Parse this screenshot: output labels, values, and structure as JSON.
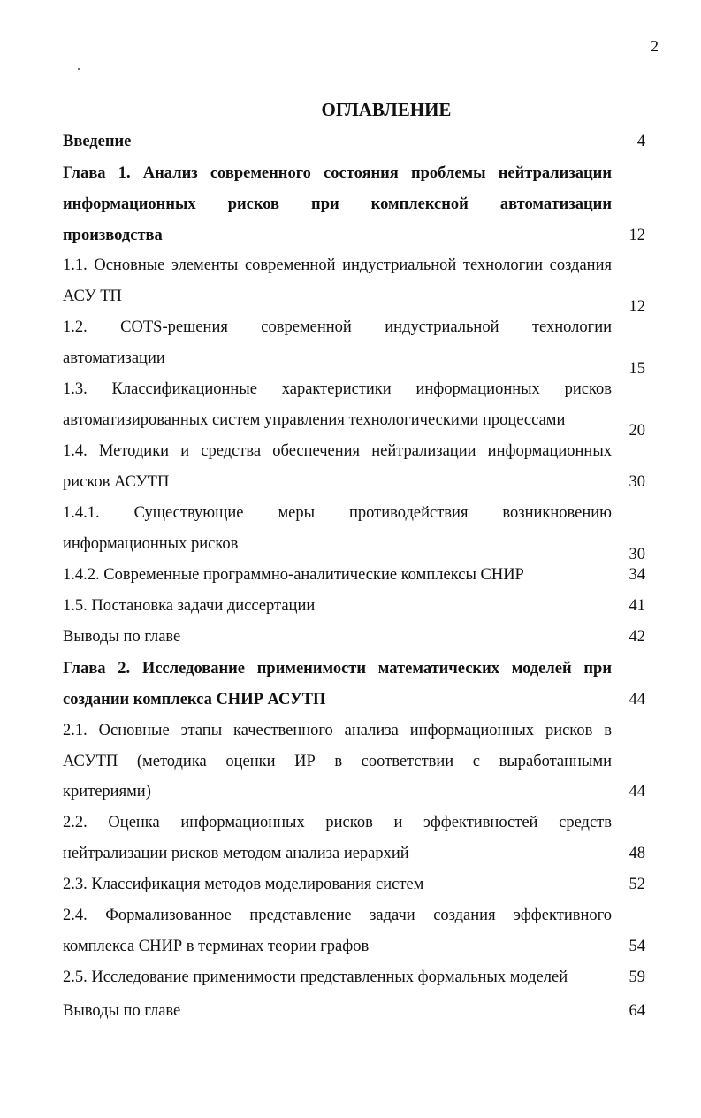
{
  "page_number": "2",
  "title": "ОГЛАВЛЕНИЕ",
  "entries": [
    {
      "bold": true,
      "lines": [
        "Введение"
      ],
      "page": "4"
    },
    {
      "bold": true,
      "lines": [
        "Глава 1. Анализ современного состояния проблемы нейтрализации",
        "информационных рисков при комплексной автоматизации",
        "производства"
      ],
      "page": "12"
    },
    {
      "bold": false,
      "lines": [
        "1.1. Основные элементы современной индустриальной технологии создания",
        "АСУ ТП"
      ],
      "page": "12"
    },
    {
      "bold": false,
      "lines": [
        "1.2. COTS-решения современной индустриальной технологии",
        "автоматизации"
      ],
      "page": "15"
    },
    {
      "bold": false,
      "lines": [
        "1.3. Классификационные характеристики информационных рисков",
        "автоматизированных систем управления технологическими процессами"
      ],
      "page": "20"
    },
    {
      "bold": false,
      "lines": [
        "1.4. Методики и средства обеспечения нейтрализации информационных",
        "рисков АСУТП"
      ],
      "page": "30"
    },
    {
      "bold": false,
      "lines": [
        "1.4.1. Существующие меры противодействия возникновению",
        "информационных рисков"
      ],
      "page": "30"
    },
    {
      "bold": false,
      "lines": [
        "1.4.2. Современные программно-аналитические комплексы СНИР"
      ],
      "page": "34"
    },
    {
      "bold": false,
      "lines": [
        "1.5. Постановка задачи диссертации"
      ],
      "page": "41"
    },
    {
      "bold": false,
      "lines": [
        "Выводы по главе"
      ],
      "page": "42"
    },
    {
      "bold": true,
      "lines": [
        "Глава 2. Исследование применимости математических моделей при",
        "создании комплекса СНИР АСУТП"
      ],
      "page": "44"
    },
    {
      "bold": false,
      "lines": [
        "2.1. Основные этапы качественного анализа информационных рисков в",
        "АСУТП (методика оценки ИР в соответствии с выработанными",
        "критериями)"
      ],
      "page": "44"
    },
    {
      "bold": false,
      "lines": [
        "2.2. Оценка информационных рисков и эффективностей средств",
        "нейтрализации рисков методом анализа иерархий"
      ],
      "page": "48"
    },
    {
      "bold": false,
      "lines": [
        "2.3. Классификация методов моделирования систем"
      ],
      "page": "52"
    },
    {
      "bold": false,
      "lines": [
        "2.4. Формализованное представление задачи создания эффективного",
        "комплекса СНИР в терминах теории графов"
      ],
      "page": "54"
    },
    {
      "bold": false,
      "lines": [
        "2.5. Исследование применимости представленных формальных моделей"
      ],
      "page": "59"
    },
    {
      "bold": false,
      "lines": [
        "Выводы по главе"
      ],
      "page": "64"
    }
  ]
}
